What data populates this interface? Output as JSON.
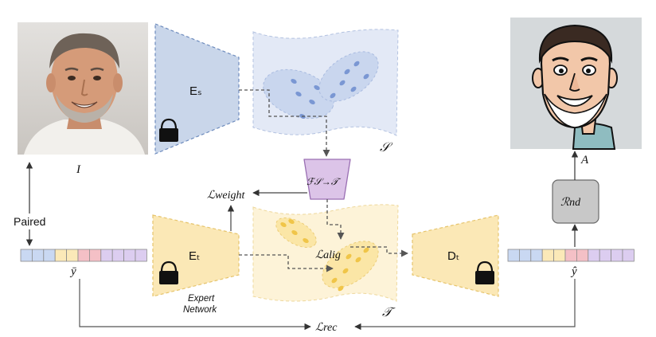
{
  "labels": {
    "source_encoder": "Eₛ",
    "target_encoder": "Eₜ",
    "target_decoder": "Dₜ",
    "source_space": "𝒮",
    "target_space": "𝒯",
    "mapping": "ℱ𝒮→𝒯",
    "loss_weight": "ℒweight",
    "loss_align": "ℒalig",
    "loss_rec": "ℒrec",
    "renderer": "ℛnd",
    "input_image": "I",
    "avatar": "A",
    "paired": "Paired",
    "y_bar": "ȳ",
    "y_hat": "ŷ",
    "expert_line1": "Expert",
    "expert_line2": "Network"
  },
  "colors": {
    "source_fill": "#c9d6ea",
    "source_stroke": "#6d8bbd",
    "target_fill": "#fbe8b6",
    "target_stroke": "#e6c46c",
    "mapping_fill": "#dcc4e8",
    "mapping_stroke": "#9a6fb3",
    "renderer_fill": "#c8c8c8",
    "renderer_stroke": "#6a6a6a",
    "source_dot": "#7a97d3",
    "target_dot": "#f0c548"
  },
  "vectors": {
    "y_bar_cells": [
      "#c9d8f2",
      "#c9d8f2",
      "#c9d8f2",
      "#fbe9b8",
      "#fbe9b8",
      "#f4c0c6",
      "#f4c0c6",
      "#dccdf0",
      "#dccdf0",
      "#dccdf0",
      "#dccdf0"
    ],
    "y_hat_cells": [
      "#c9d8f2",
      "#c9d8f2",
      "#c9d8f2",
      "#fbe9b8",
      "#fbe9b8",
      "#f4c0c6",
      "#f4c0c6",
      "#dccdf0",
      "#dccdf0",
      "#dccdf0",
      "#dccdf0"
    ]
  },
  "icons": [
    "lock-icon",
    "face-photo",
    "caricature-avatar"
  ]
}
